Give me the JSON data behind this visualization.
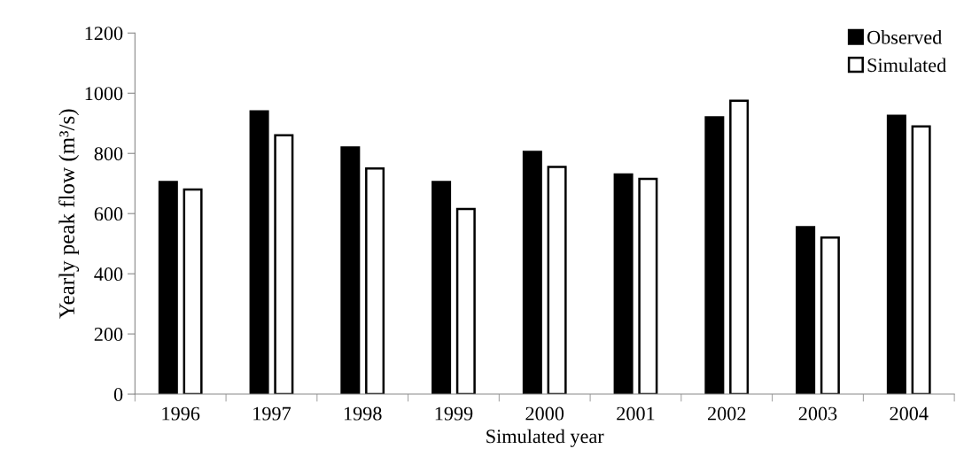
{
  "chart_data": {
    "type": "bar",
    "xlabel": "Simulated year",
    "ylabel": "Yearly peak flow (m³/s)",
    "categories": [
      "1996",
      "1997",
      "1998",
      "1999",
      "2000",
      "2001",
      "2002",
      "2003",
      "2004"
    ],
    "series": [
      {
        "name": "Observed",
        "color": "#000000",
        "values": [
          705,
          940,
          820,
          705,
          805,
          730,
          920,
          555,
          925
        ]
      },
      {
        "name": "Simulated",
        "color": "#ffffff",
        "values": [
          680,
          860,
          750,
          615,
          755,
          715,
          975,
          520,
          890
        ]
      }
    ],
    "ylim": [
      0,
      1200
    ],
    "yticks": [
      0,
      200,
      400,
      600,
      800,
      1000,
      1200
    ],
    "grid": false,
    "legend": "top right"
  }
}
